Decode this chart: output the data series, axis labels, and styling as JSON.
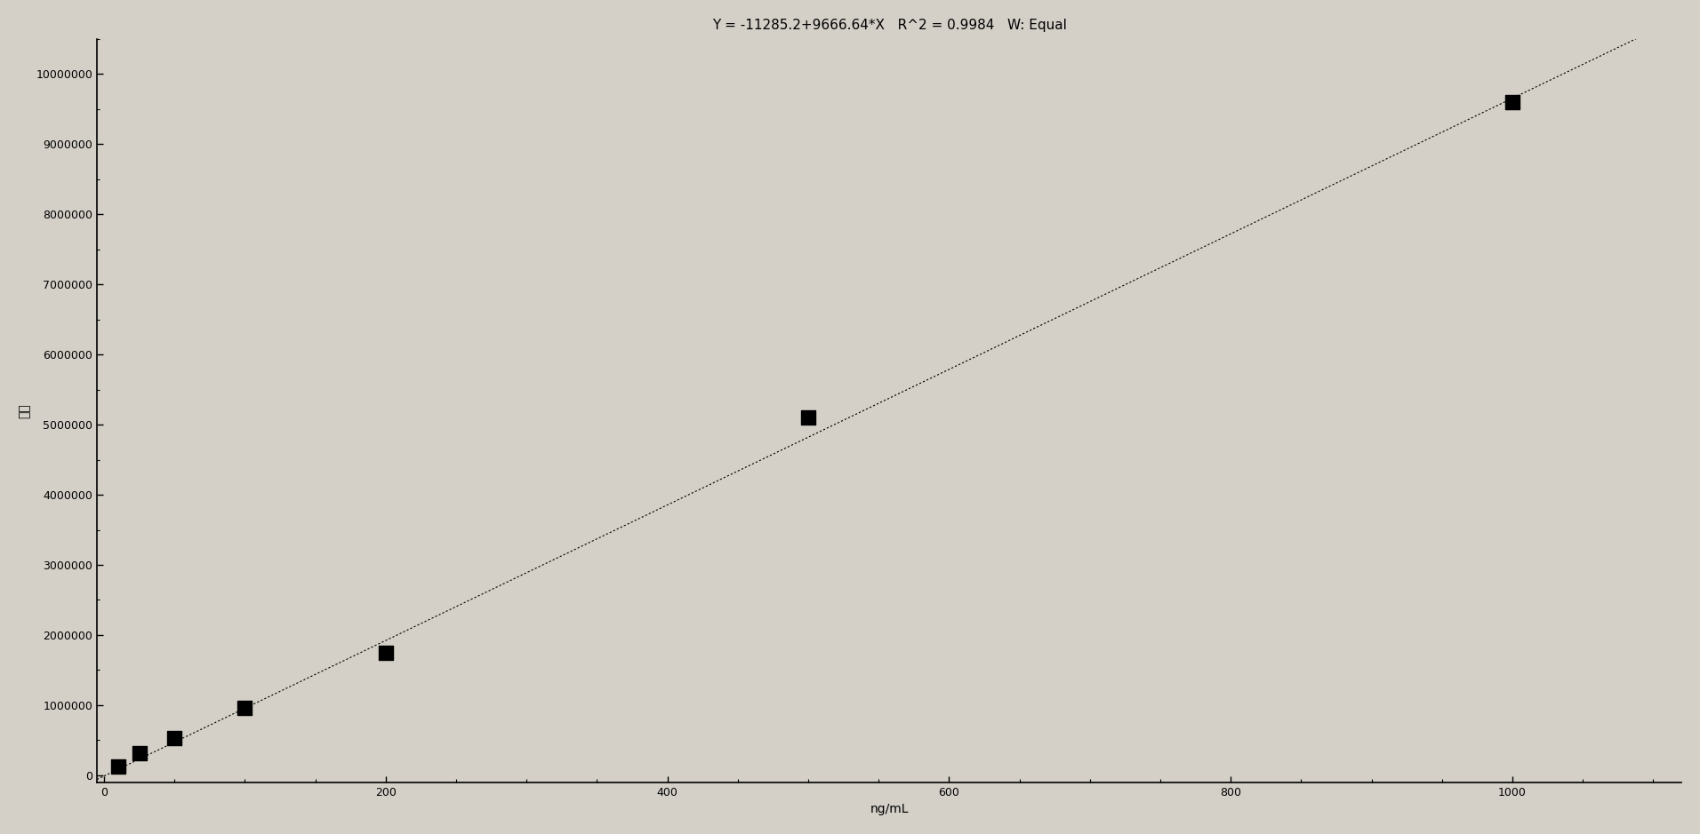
{
  "title": "Y = -11285.2+9666.64*X   R^2 = 0.9984   W: Equal",
  "xlabel": "ng/mL",
  "ylabel": "面积",
  "scatter_x": [
    10,
    25,
    50,
    100,
    200,
    500,
    1000
  ],
  "scatter_y": [
    120000,
    320000,
    530000,
    960000,
    1750000,
    5100000,
    9600000
  ],
  "intercept": -11285.2,
  "slope": 9666.64,
  "line_x_start": -5,
  "line_x_end": 1120,
  "xlim": [
    -5,
    1120
  ],
  "ylim": [
    -100000,
    10500000
  ],
  "yticks": [
    0,
    1000000,
    2000000,
    3000000,
    4000000,
    5000000,
    6000000,
    7000000,
    8000000,
    9000000,
    10000000
  ],
  "xticks": [
    0,
    200,
    400,
    600,
    800,
    1000
  ],
  "bg_color": "#c0c0c0",
  "plot_bg_color": "#c8c8c8",
  "line_color": "#000000",
  "scatter_color": "#000000",
  "title_fontsize": 11,
  "label_fontsize": 10,
  "tick_fontsize": 9
}
